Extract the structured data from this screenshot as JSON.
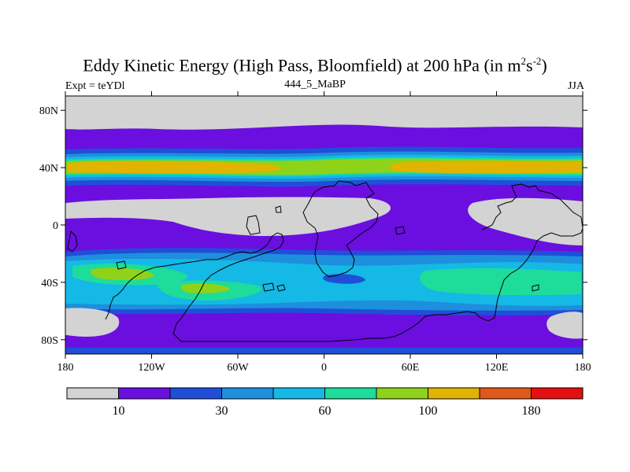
{
  "title": "Eddy Kinetic Energy (High Pass, Bloomfield) at 200 hPa (in m",
  "title_units_sup1": "2",
  "title_units_mid": "s",
  "title_units_sup2": "-2",
  "title_units_end": ")",
  "subtitle": "444_5_MaBP",
  "left_label": "Expt = teYDl",
  "right_label": "JJA",
  "map": {
    "lat_ticks": [
      "80N",
      "40N",
      "0",
      "40S",
      "80S"
    ],
    "lat_values": [
      80,
      40,
      0,
      -40,
      -80
    ],
    "lon_ticks": [
      "180",
      "120W",
      "60W",
      "0",
      "60E",
      "120E",
      "180"
    ],
    "lon_values": [
      -180,
      -120,
      -60,
      0,
      60,
      120,
      180
    ],
    "lat_range": [
      -90,
      90
    ],
    "lon_range": [
      -180,
      180
    ]
  },
  "colorbar": {
    "colors": [
      "#d3d3d3",
      "#6a0fe0",
      "#1f4fd8",
      "#1e8fdc",
      "#14b9e6",
      "#1edc9a",
      "#8ed21a",
      "#e0b400",
      "#e0581a",
      "#e60f0f"
    ],
    "labels": [
      "10",
      "30",
      "60",
      "100",
      "180"
    ],
    "label_boundaries": [
      1,
      3,
      5,
      7,
      9
    ]
  },
  "colors": {
    "gray": "#d3d3d3",
    "violet": "#6a0fe0",
    "blue": "#1f4fd8",
    "midblue": "#1e8fdc",
    "cyan": "#14b9e6",
    "teal": "#1edc9a",
    "lime": "#8ed21a",
    "gold": "#e0b400"
  }
}
